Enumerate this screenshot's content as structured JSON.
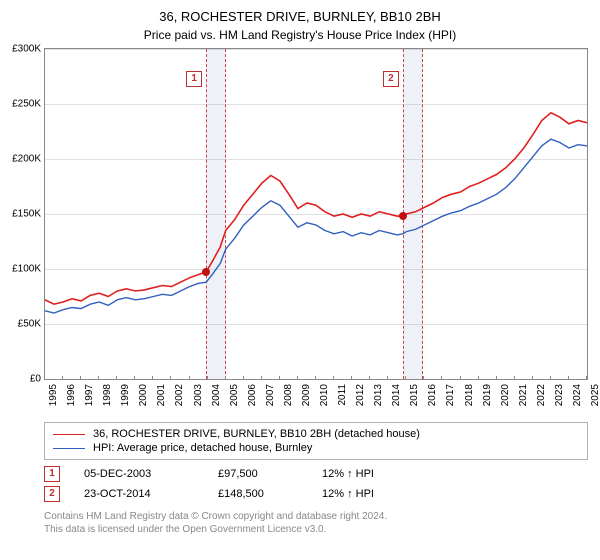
{
  "title": "36, ROCHESTER DRIVE, BURNLEY, BB10 2BH",
  "subtitle": "Price paid vs. HM Land Registry's House Price Index (HPI)",
  "chart": {
    "type": "line",
    "background_color": "#ffffff",
    "grid_color": "#e0e0e0",
    "axis_color": "#888888",
    "xlim": [
      1995,
      2025
    ],
    "ylim": [
      0,
      300000
    ],
    "ytick_step": 50000,
    "yticks": [
      "£0",
      "£50K",
      "£100K",
      "£150K",
      "£200K",
      "£250K",
      "£300K"
    ],
    "xticks": [
      1995,
      1996,
      1997,
      1998,
      1999,
      2000,
      2001,
      2002,
      2003,
      2004,
      2005,
      2006,
      2007,
      2008,
      2009,
      2010,
      2011,
      2012,
      2013,
      2014,
      2015,
      2016,
      2017,
      2018,
      2019,
      2020,
      2021,
      2022,
      2023,
      2024,
      2025
    ],
    "label_fontsize": 10,
    "sale_bands": [
      {
        "x_start": 2003.92,
        "x_end": 2004.92,
        "label": "1"
      },
      {
        "x_start": 2014.81,
        "x_end": 2015.81,
        "label": "2"
      }
    ],
    "series": [
      {
        "id": "property",
        "label": "36, ROCHESTER DRIVE, BURNLEY, BB10 2BH (detached house)",
        "color": "#e02020",
        "line_width": 1.6,
        "points": [
          [
            1995,
            72000
          ],
          [
            1995.5,
            68000
          ],
          [
            1996,
            70000
          ],
          [
            1996.5,
            73000
          ],
          [
            1997,
            71000
          ],
          [
            1997.5,
            76000
          ],
          [
            1998,
            78000
          ],
          [
            1998.5,
            75000
          ],
          [
            1999,
            80000
          ],
          [
            1999.5,
            82000
          ],
          [
            2000,
            80000
          ],
          [
            2000.5,
            81000
          ],
          [
            2001,
            83000
          ],
          [
            2001.5,
            85000
          ],
          [
            2002,
            84000
          ],
          [
            2002.5,
            88000
          ],
          [
            2003,
            92000
          ],
          [
            2003.5,
            95000
          ],
          [
            2003.92,
            97500
          ],
          [
            2004.3,
            108000
          ],
          [
            2004.7,
            120000
          ],
          [
            2005,
            135000
          ],
          [
            2005.5,
            145000
          ],
          [
            2006,
            158000
          ],
          [
            2006.5,
            168000
          ],
          [
            2007,
            178000
          ],
          [
            2007.5,
            185000
          ],
          [
            2008,
            180000
          ],
          [
            2008.5,
            168000
          ],
          [
            2009,
            155000
          ],
          [
            2009.5,
            160000
          ],
          [
            2010,
            158000
          ],
          [
            2010.5,
            152000
          ],
          [
            2011,
            148000
          ],
          [
            2011.5,
            150000
          ],
          [
            2012,
            147000
          ],
          [
            2012.5,
            150000
          ],
          [
            2013,
            148000
          ],
          [
            2013.5,
            152000
          ],
          [
            2014,
            150000
          ],
          [
            2014.5,
            148000
          ],
          [
            2014.81,
            148500
          ],
          [
            2015,
            150000
          ],
          [
            2015.5,
            152000
          ],
          [
            2016,
            156000
          ],
          [
            2016.5,
            160000
          ],
          [
            2017,
            165000
          ],
          [
            2017.5,
            168000
          ],
          [
            2018,
            170000
          ],
          [
            2018.5,
            175000
          ],
          [
            2019,
            178000
          ],
          [
            2019.5,
            182000
          ],
          [
            2020,
            186000
          ],
          [
            2020.5,
            192000
          ],
          [
            2021,
            200000
          ],
          [
            2021.5,
            210000
          ],
          [
            2022,
            222000
          ],
          [
            2022.5,
            235000
          ],
          [
            2023,
            242000
          ],
          [
            2023.5,
            238000
          ],
          [
            2024,
            232000
          ],
          [
            2024.5,
            235000
          ],
          [
            2025,
            233000
          ]
        ]
      },
      {
        "id": "hpi",
        "label": "HPI: Average price, detached house, Burnley",
        "color": "#3060c0",
        "line_width": 1.4,
        "points": [
          [
            1995,
            62000
          ],
          [
            1995.5,
            60000
          ],
          [
            1996,
            63000
          ],
          [
            1996.5,
            65000
          ],
          [
            1997,
            64000
          ],
          [
            1997.5,
            68000
          ],
          [
            1998,
            70000
          ],
          [
            1998.5,
            67000
          ],
          [
            1999,
            72000
          ],
          [
            1999.5,
            74000
          ],
          [
            2000,
            72000
          ],
          [
            2000.5,
            73000
          ],
          [
            2001,
            75000
          ],
          [
            2001.5,
            77000
          ],
          [
            2002,
            76000
          ],
          [
            2002.5,
            80000
          ],
          [
            2003,
            84000
          ],
          [
            2003.5,
            87000
          ],
          [
            2003.92,
            88000
          ],
          [
            2004.3,
            96000
          ],
          [
            2004.7,
            105000
          ],
          [
            2005,
            118000
          ],
          [
            2005.5,
            128000
          ],
          [
            2006,
            140000
          ],
          [
            2006.5,
            148000
          ],
          [
            2007,
            156000
          ],
          [
            2007.5,
            162000
          ],
          [
            2008,
            158000
          ],
          [
            2008.5,
            148000
          ],
          [
            2009,
            138000
          ],
          [
            2009.5,
            142000
          ],
          [
            2010,
            140000
          ],
          [
            2010.5,
            135000
          ],
          [
            2011,
            132000
          ],
          [
            2011.5,
            134000
          ],
          [
            2012,
            130000
          ],
          [
            2012.5,
            133000
          ],
          [
            2013,
            131000
          ],
          [
            2013.5,
            135000
          ],
          [
            2014,
            133000
          ],
          [
            2014.5,
            131000
          ],
          [
            2014.81,
            132000
          ],
          [
            2015,
            134000
          ],
          [
            2015.5,
            136000
          ],
          [
            2016,
            140000
          ],
          [
            2016.5,
            144000
          ],
          [
            2017,
            148000
          ],
          [
            2017.5,
            151000
          ],
          [
            2018,
            153000
          ],
          [
            2018.5,
            157000
          ],
          [
            2019,
            160000
          ],
          [
            2019.5,
            164000
          ],
          [
            2020,
            168000
          ],
          [
            2020.5,
            174000
          ],
          [
            2021,
            182000
          ],
          [
            2021.5,
            192000
          ],
          [
            2022,
            202000
          ],
          [
            2022.5,
            212000
          ],
          [
            2023,
            218000
          ],
          [
            2023.5,
            215000
          ],
          [
            2024,
            210000
          ],
          [
            2024.5,
            213000
          ],
          [
            2025,
            212000
          ]
        ]
      }
    ],
    "sale_markers": [
      {
        "x": 2003.92,
        "y": 97500,
        "color": "#c01010"
      },
      {
        "x": 2014.81,
        "y": 148500,
        "color": "#c01010"
      }
    ]
  },
  "legend": {
    "items": [
      {
        "color": "#e02020",
        "label_ref": "chart.series.0.label"
      },
      {
        "color": "#3060c0",
        "label_ref": "chart.series.1.label"
      }
    ]
  },
  "sales": [
    {
      "num": "1",
      "date": "05-DEC-2003",
      "price": "£97,500",
      "rel": "12% ↑ HPI"
    },
    {
      "num": "2",
      "date": "23-OCT-2014",
      "price": "£148,500",
      "rel": "12% ↑ HPI"
    }
  ],
  "footer": {
    "line1": "Contains HM Land Registry data © Crown copyright and database right 2024.",
    "line2": "This data is licensed under the Open Government Licence v3.0."
  }
}
